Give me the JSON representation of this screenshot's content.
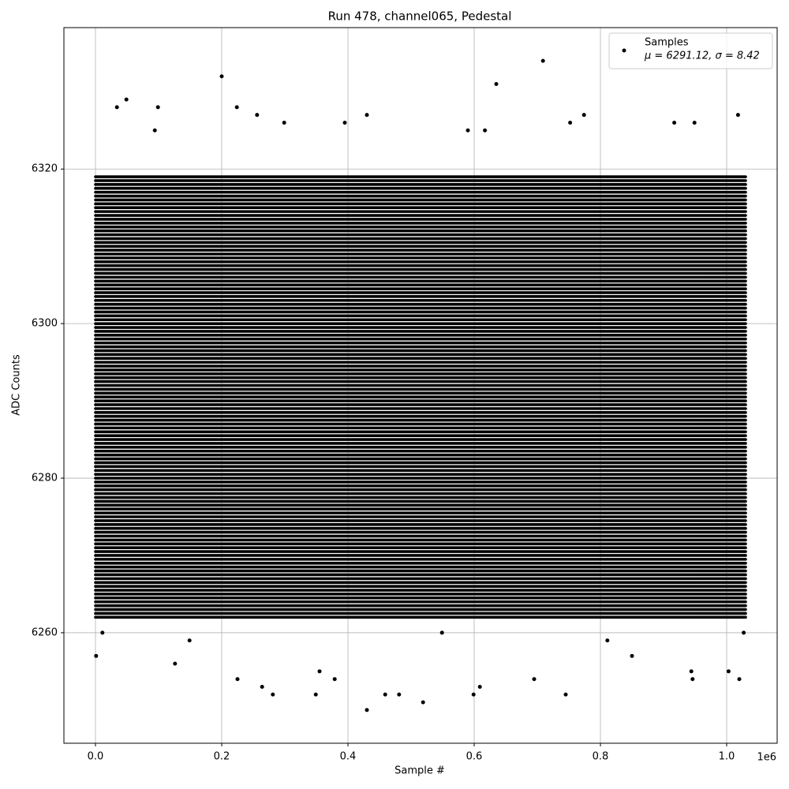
{
  "chart_data": {
    "type": "scatter",
    "title": "Run 478, channel065, Pedestal",
    "xlabel": "Sample #",
    "ylabel": "ADC Counts",
    "x_offset_label": "1e6",
    "xlim": [
      -50000,
      1080000
    ],
    "ylim": [
      6245.7,
      6338.3
    ],
    "xticks": [
      {
        "value": 0,
        "label": "0.0"
      },
      {
        "value": 200000,
        "label": "0.2"
      },
      {
        "value": 400000,
        "label": "0.4"
      },
      {
        "value": 600000,
        "label": "0.6"
      },
      {
        "value": 800000,
        "label": "0.8"
      },
      {
        "value": 1000000,
        "label": "1.0"
      }
    ],
    "yticks": [
      6260,
      6280,
      6300,
      6320
    ],
    "grid": true,
    "legend": "upper right",
    "series": [
      {
        "name": "Samples",
        "stats": "μ = 6291.12, σ = 8.42",
        "color": "#000000",
        "x": [
          709000,
          200000,
          635000,
          49000,
          34000,
          99000,
          224000,
          1018000,
          430000,
          256000,
          774000,
          94000,
          299000,
          395000,
          590000,
          617000,
          752000,
          917000,
          949000,
          430000,
          519000,
          349000,
          281000,
          459000,
          481000,
          599000,
          745000,
          609000,
          264000,
          695000,
          225000,
          379000,
          946000,
          1020000,
          1003000,
          944000,
          355000,
          1000,
          126000,
          850000,
          11000,
          549000,
          1027000,
          149000,
          811000
        ],
        "y": [
          6334,
          6332,
          6331,
          6329,
          6328,
          6328,
          6328,
          6327,
          6327,
          6327,
          6327,
          6325,
          6326,
          6326,
          6325,
          6325,
          6326,
          6326,
          6326,
          6250,
          6251,
          6252,
          6252,
          6252,
          6252,
          6252,
          6252,
          6253,
          6253,
          6254,
          6254,
          6254,
          6254,
          6254,
          6255,
          6255,
          6255,
          6257,
          6256,
          6257,
          6260,
          6260,
          6260,
          6259,
          6259
        ]
      }
    ],
    "dense_rows": {
      "x_start": 0,
      "x_end": 1030000,
      "y": [
        6262,
        6262.5,
        6263,
        6263.5,
        6264,
        6264.5,
        6265,
        6265.5,
        6266,
        6266.5,
        6267,
        6267.5,
        6268,
        6268.5,
        6269,
        6269.5,
        6270,
        6270.5,
        6271,
        6271.5,
        6272,
        6272.5,
        6273,
        6273.5,
        6274,
        6274.5,
        6275,
        6275.5,
        6276,
        6276.5,
        6277,
        6277.5,
        6278,
        6278.5,
        6279,
        6279.5,
        6280,
        6280.5,
        6281,
        6281.5,
        6282,
        6282.5,
        6283,
        6283.5,
        6284,
        6284.5,
        6285,
        6285.5,
        6286,
        6286.5,
        6287,
        6287.5,
        6288,
        6288.5,
        6289,
        6289.5,
        6290,
        6290.5,
        6291,
        6291.5,
        6292,
        6292.5,
        6293,
        6293.5,
        6294,
        6294.5,
        6295,
        6295.5,
        6296,
        6296.5,
        6297,
        6297.5,
        6298,
        6298.5,
        6299,
        6299.5,
        6300,
        6300.5,
        6301,
        6301.5,
        6302,
        6302.5,
        6303,
        6303.5,
        6304,
        6304.5,
        6305,
        6305.5,
        6306,
        6306.5,
        6307,
        6307.5,
        6308,
        6308.5,
        6309,
        6309.5,
        6310,
        6310.5,
        6311,
        6311.5,
        6312,
        6312.5,
        6313,
        6313.5,
        6314,
        6314.5,
        6315,
        6315.5,
        6316,
        6316.5,
        6317,
        6317.5,
        6318,
        6318.5,
        6319
      ]
    }
  }
}
